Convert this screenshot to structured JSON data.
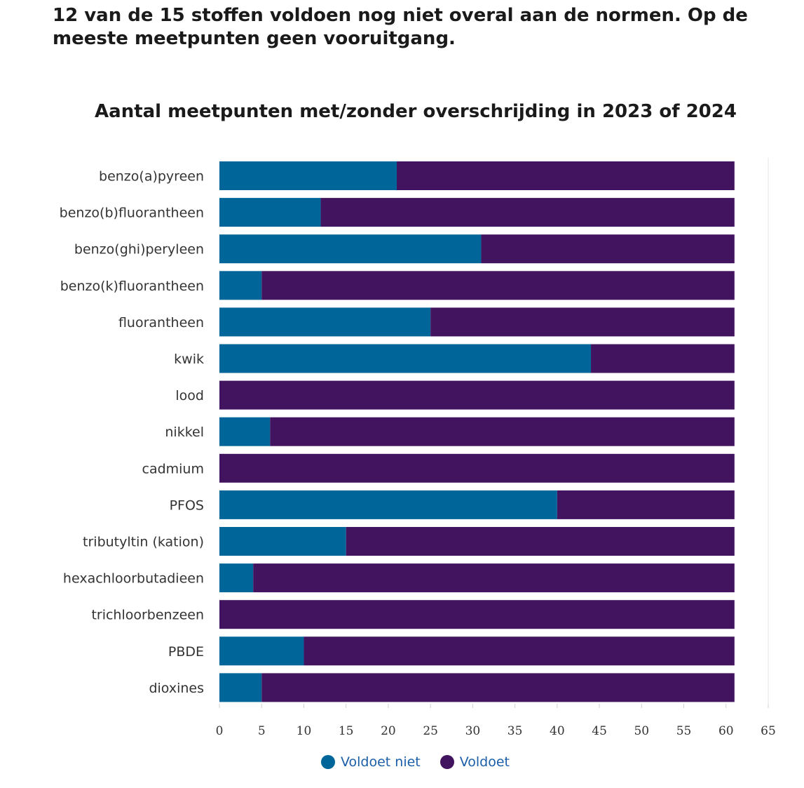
{
  "headline": "12 van de 15 stoffen voldoen nog niet overal aan de normen. Op de meeste meetpunten geen vooruitgang.",
  "chart_data": {
    "type": "bar",
    "orientation": "horizontal",
    "stacked": true,
    "title": "Aantal meetpunten met/zonder overschrijding in 2023 of 2024",
    "xlabel": "",
    "ylabel": "",
    "xlim": [
      0,
      65
    ],
    "xticks": [
      0,
      5,
      10,
      15,
      20,
      25,
      30,
      35,
      40,
      45,
      50,
      55,
      60,
      65
    ],
    "grid": false,
    "legend_position": "bottom-center",
    "categories": [
      "benzo(a)pyreen",
      "benzo(b)fluorantheen",
      "benzo(ghi)peryleen",
      "benzo(k)fluorantheen",
      "fluorantheen",
      "kwik",
      "lood",
      "nikkel",
      "cadmium",
      "PFOS",
      "tributyltin (kation)",
      "hexachloorbutadieen",
      "trichloorbenzeen",
      "PBDE",
      "dioxines"
    ],
    "series": [
      {
        "name": "Voldoet niet",
        "color": "#006699",
        "values": [
          21,
          12,
          31,
          5,
          25,
          44,
          0,
          6,
          0,
          40,
          15,
          4,
          0,
          10,
          5
        ]
      },
      {
        "name": "Voldoet",
        "color": "#42145f",
        "values": [
          40,
          49,
          30,
          56,
          36,
          17,
          61,
          55,
          61,
          21,
          46,
          57,
          61,
          51,
          56
        ]
      }
    ]
  }
}
